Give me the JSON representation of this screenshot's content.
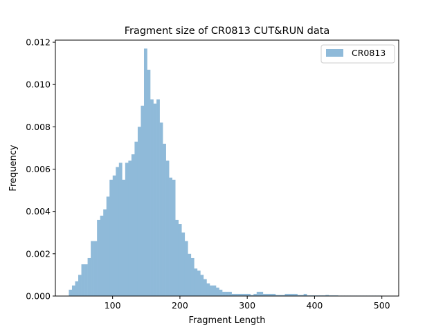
{
  "chart_data": {
    "type": "bar",
    "subtype": "histogram",
    "title": "Fragment size of CR0813 CUT&RUN data",
    "xlabel": "Fragment Length",
    "ylabel": "Frequency",
    "xlim": [
      15,
      525
    ],
    "ylim": [
      0,
      0.0121
    ],
    "xticks": [
      100,
      200,
      300,
      400,
      500
    ],
    "yticks": [
      0.0,
      0.002,
      0.004,
      0.006,
      0.008,
      0.01,
      0.012
    ],
    "ytick_labels": [
      "0.000",
      "0.002",
      "0.004",
      "0.006",
      "0.008",
      "0.010",
      "0.012"
    ],
    "grid": false,
    "legend": {
      "position": "top-right",
      "entries": [
        "CR0813"
      ]
    },
    "series": [
      {
        "name": "CR0813",
        "color": "#8fbad9",
        "bin_start": 35,
        "bin_width": 4.65,
        "values": [
          0.0003,
          0.0005,
          0.0007,
          0.001,
          0.0015,
          0.0015,
          0.0018,
          0.0026,
          0.0026,
          0.0036,
          0.0038,
          0.0041,
          0.0047,
          0.0055,
          0.0057,
          0.0061,
          0.0063,
          0.0055,
          0.0063,
          0.0064,
          0.0067,
          0.0073,
          0.008,
          0.009,
          0.0117,
          0.0107,
          0.0093,
          0.0091,
          0.0093,
          0.0082,
          0.0072,
          0.0064,
          0.0056,
          0.0055,
          0.0036,
          0.0034,
          0.003,
          0.0026,
          0.002,
          0.0018,
          0.0013,
          0.0012,
          0.001,
          0.0008,
          0.0006,
          0.0005,
          0.0005,
          0.0004,
          0.0003,
          0.0002,
          0.0002,
          0.0002,
          0.0001,
          0.0001,
          0.0001,
          0.0001,
          0.0001,
          0.0001,
          5e-05,
          0.0001,
          0.0002,
          0.0002,
          0.0001,
          0.0001,
          0.0001,
          0.0001,
          5e-05,
          5e-05,
          5e-05,
          0.0001,
          0.0001,
          0.0001,
          0.0001,
          5e-05,
          5e-05,
          0.0001,
          3e-05,
          3e-05,
          3e-05,
          3e-05,
          3e-05,
          3e-05,
          5e-05,
          3e-05,
          3e-05,
          3e-05,
          2e-05,
          2e-05,
          2e-05,
          2e-05,
          2e-05,
          2e-05,
          2e-05,
          2e-05,
          2e-05,
          2e-05,
          2e-05,
          2e-05,
          2e-05,
          2e-05
        ]
      }
    ]
  }
}
